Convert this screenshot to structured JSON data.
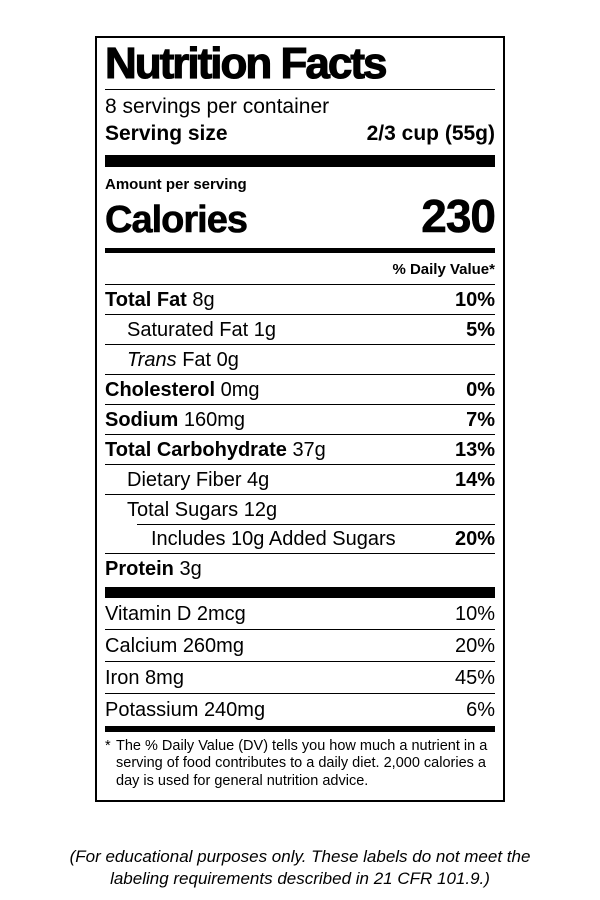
{
  "label": {
    "title": "Nutrition Facts",
    "servings_per_container": "8 servings per container",
    "serving_size_label": "Serving size",
    "serving_size_value": "2/3 cup (55g)",
    "amount_per_serving": "Amount per serving",
    "calories_label": "Calories",
    "calories_value": "230",
    "daily_value_header": "% Daily Value*",
    "nutrients": [
      {
        "name": "Total Fat",
        "amount": "8g",
        "dv": "10%",
        "indent": 0,
        "bold_name": true,
        "bold_dv": true
      },
      {
        "name": "Saturated Fat",
        "amount": "1g",
        "dv": "5%",
        "indent": 1,
        "bold_name": false,
        "bold_dv": true
      },
      {
        "name": "Trans",
        "amount": "Fat 0g",
        "dv": "",
        "indent": 1,
        "bold_name": false,
        "italic_name": true,
        "bold_dv": false
      },
      {
        "name": "Cholesterol",
        "amount": "0mg",
        "dv": "0%",
        "indent": 0,
        "bold_name": true,
        "bold_dv": true
      },
      {
        "name": "Sodium",
        "amount": "160mg",
        "dv": "7%",
        "indent": 0,
        "bold_name": true,
        "bold_dv": true
      },
      {
        "name": "Total Carbohydrate",
        "amount": "37g",
        "dv": "13%",
        "indent": 0,
        "bold_name": true,
        "bold_dv": true
      },
      {
        "name": "Dietary Fiber",
        "amount": "4g",
        "dv": "14%",
        "indent": 1,
        "bold_name": false,
        "bold_dv": true
      },
      {
        "name": "Total Sugars",
        "amount": "12g",
        "dv": "",
        "indent": 1,
        "bold_name": false,
        "bold_dv": false
      },
      {
        "name": "Includes 10g Added Sugars",
        "amount": "",
        "dv": "20%",
        "indent": 2,
        "bold_name": false,
        "bold_dv": true,
        "partial_rule": true
      },
      {
        "name": "Protein",
        "amount": "3g",
        "dv": "",
        "indent": 0,
        "bold_name": true,
        "bold_dv": false
      }
    ],
    "vitamins": [
      {
        "name": "Vitamin D",
        "amount": "2mcg",
        "dv": "10%"
      },
      {
        "name": "Calcium",
        "amount": "260mg",
        "dv": "20%"
      },
      {
        "name": "Iron",
        "amount": "8mg",
        "dv": "45%"
      },
      {
        "name": "Potassium",
        "amount": "240mg",
        "dv": "6%"
      }
    ],
    "footnote_marker": "*",
    "footnote": "The % Daily Value (DV) tells you how much a nutrient in a serving of food contributes to a daily diet. 2,000 calories a day is used for general nutrition advice."
  },
  "disclaimer": "(For educational purposes only. These labels do not meet the labeling requirements described in 21 CFR 101.9.)",
  "colors": {
    "text": "#000000",
    "background": "#ffffff",
    "rule": "#000000"
  }
}
